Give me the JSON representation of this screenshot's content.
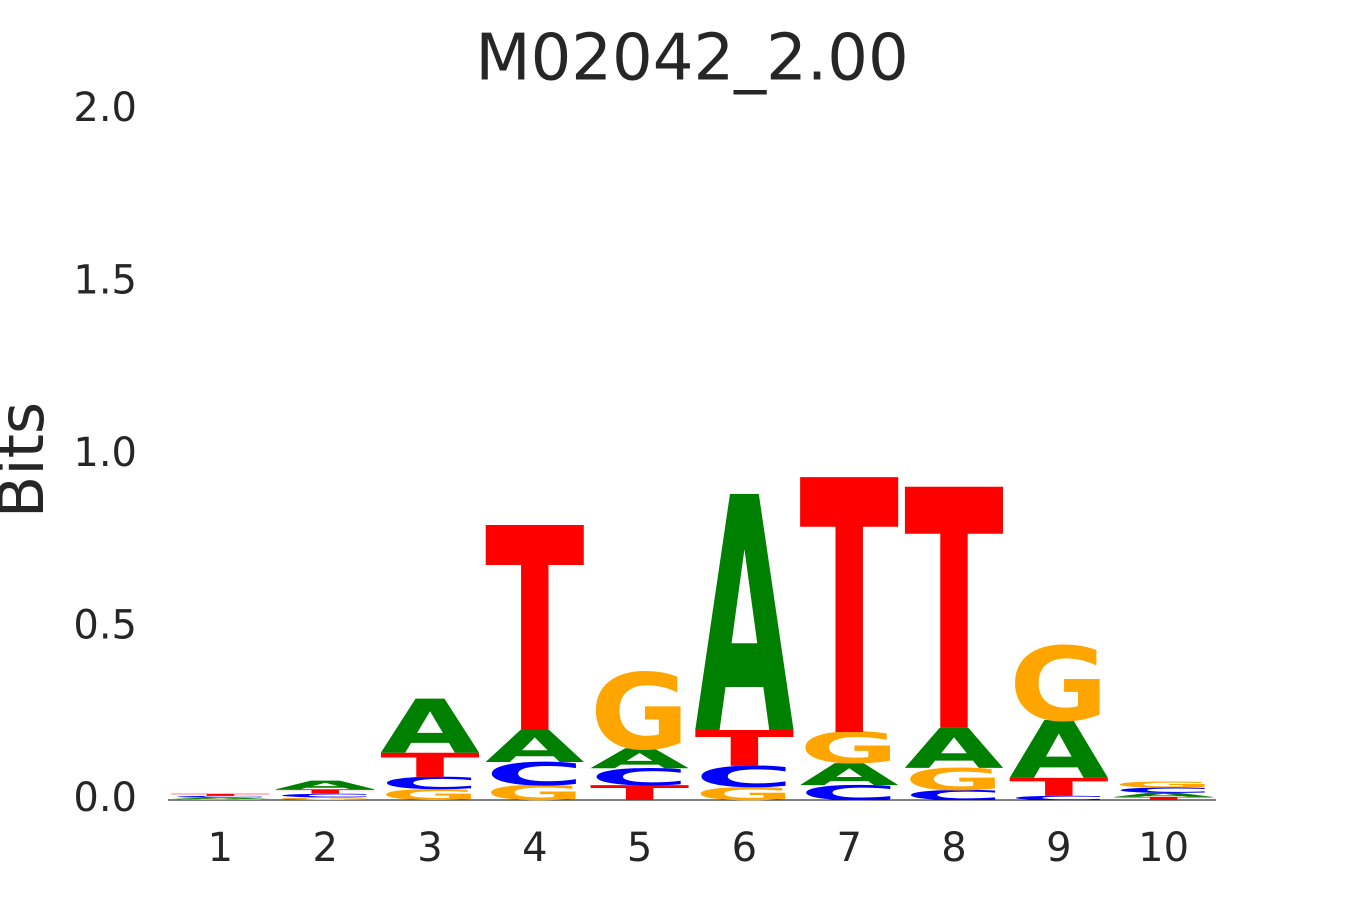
{
  "chart_data": {
    "type": "logo",
    "title": "M02042_2.00",
    "y_label": "Bits",
    "categories": [
      "1",
      "2",
      "3",
      "4",
      "5",
      "6",
      "7",
      "8",
      "9",
      "10"
    ],
    "series": [
      {
        "name": "A",
        "color": "#008000",
        "values": [
          0.004,
          0.025,
          0.157,
          0.093,
          0.058,
          0.684,
          0.064,
          0.116,
          0.168,
          0.012
        ]
      },
      {
        "name": "C",
        "color": "#0000ff",
        "values": [
          0.005,
          0.01,
          0.035,
          0.067,
          0.049,
          0.061,
          0.043,
          0.029,
          0.012,
          0.015
        ]
      },
      {
        "name": "G",
        "color": "#ffa500",
        "values": [
          0.003,
          0.008,
          0.032,
          0.043,
          0.22,
          0.038,
          0.09,
          0.064,
          0.214,
          0.016
        ]
      },
      {
        "name": "T",
        "color": "#ff0000",
        "values": [
          0.006,
          0.013,
          0.07,
          0.594,
          0.043,
          0.104,
          0.739,
          0.699,
          0.052,
          0.009
        ]
      }
    ],
    "ylim": [
      0,
      2
    ],
    "yticks": [
      {
        "value": 0,
        "label": "0.0"
      },
      {
        "value": 0.5,
        "label": "0.5"
      },
      {
        "value": 1,
        "label": "1.0"
      },
      {
        "value": 1.5,
        "label": "1.5"
      },
      {
        "value": 2,
        "label": "2.0"
      }
    ]
  }
}
